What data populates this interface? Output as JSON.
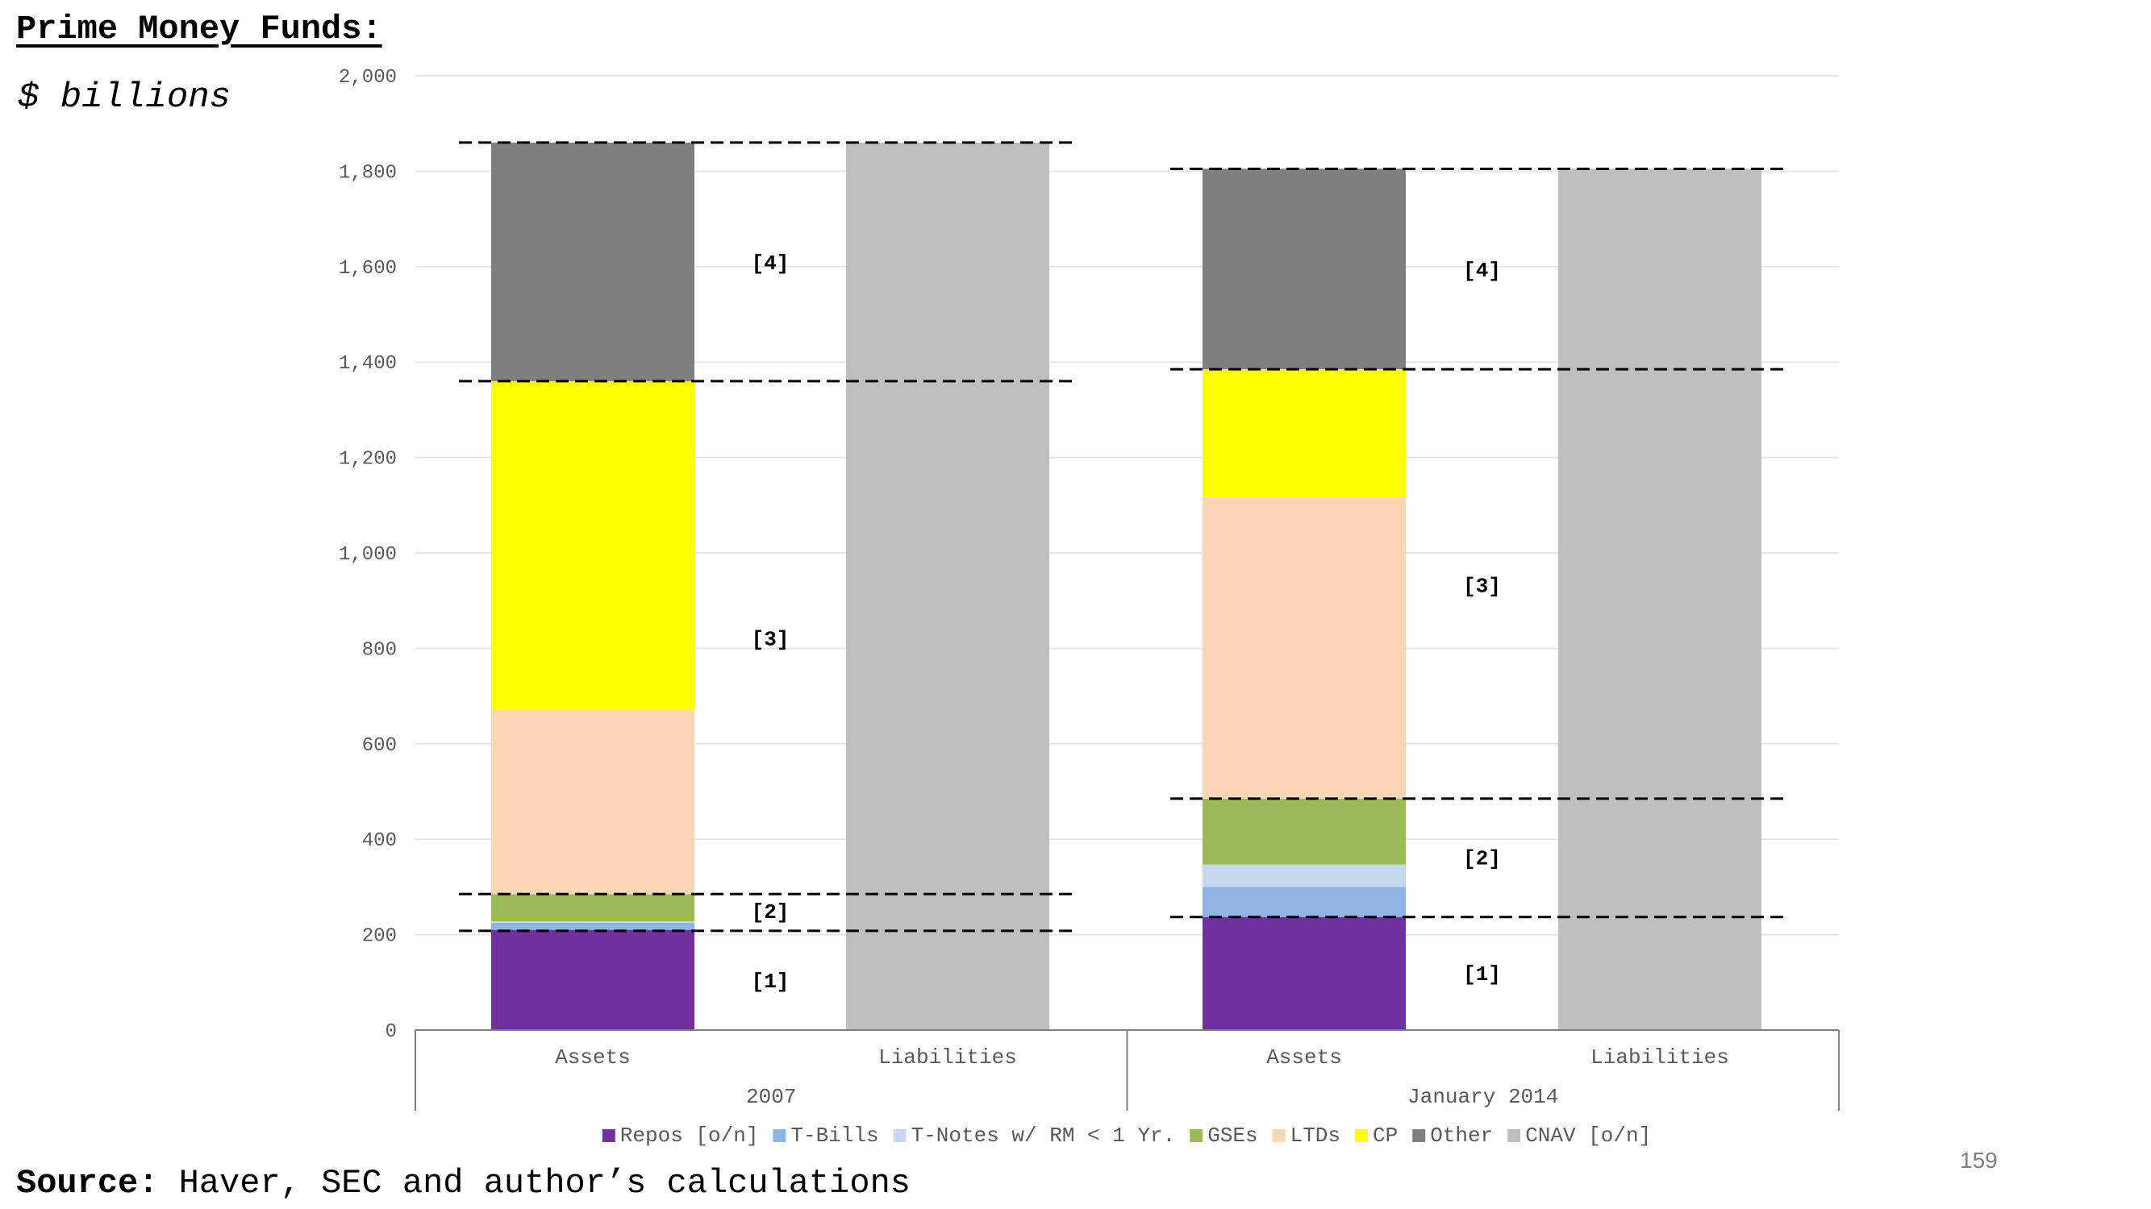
{
  "header": {
    "title": "Prime Money Funds:",
    "unit": "$ billions"
  },
  "footer": {
    "source_label": "Source:",
    "source_text": " Haver, SEC and author’s calculations",
    "page_number": "159"
  },
  "chart_data": {
    "type": "bar",
    "stacked": true,
    "ylim": [
      0,
      2000
    ],
    "yticks": [
      "0",
      "200",
      "400",
      "600",
      "800",
      "1,000",
      "1,200",
      "1,400",
      "1,600",
      "1,800",
      "2,000"
    ],
    "ytick_values": [
      0,
      200,
      400,
      600,
      800,
      1000,
      1200,
      1400,
      1600,
      1800,
      2000
    ],
    "grid": true,
    "legend_position": "bottom",
    "groups": [
      {
        "label": "2007",
        "bars": [
          {
            "label": "Assets",
            "segments": [
              {
                "series": "Repos [o/n]",
                "value": 210
              },
              {
                "series": "T-Bills",
                "value": 15
              },
              {
                "series": "T-Notes w/ RM < 1 Yr.",
                "value": 3
              },
              {
                "series": "GSEs",
                "value": 57
              },
              {
                "series": "LTDs",
                "value": 385
              },
              {
                "series": "CP",
                "value": 690
              },
              {
                "series": "Other",
                "value": 500
              }
            ]
          },
          {
            "label": "Liabilities",
            "segments": [
              {
                "series": "CNAV [o/n]",
                "value": 1860
              }
            ]
          }
        ],
        "brackets": [
          {
            "label": "[1]",
            "y": 105
          },
          {
            "label": "[2]",
            "y": 250
          },
          {
            "label": "[3]",
            "y": 822
          },
          {
            "label": "[4]",
            "y": 1610
          }
        ],
        "dashed_lines": [
          208,
          285,
          1360,
          1860
        ]
      },
      {
        "label": "January 2014",
        "bars": [
          {
            "label": "Assets",
            "segments": [
              {
                "series": "Repos [o/n]",
                "value": 237
              },
              {
                "series": "T-Bills",
                "value": 63
              },
              {
                "series": "T-Notes w/ RM < 1 Yr.",
                "value": 47
              },
              {
                "series": "GSEs",
                "value": 138
              },
              {
                "series": "LTDs",
                "value": 630
              },
              {
                "series": "CP",
                "value": 270
              },
              {
                "series": "Other",
                "value": 420
              }
            ]
          },
          {
            "label": "Liabilities",
            "segments": [
              {
                "series": "CNAV [o/n]",
                "value": 1805
              }
            ]
          }
        ],
        "brackets": [
          {
            "label": "[1]",
            "y": 120
          },
          {
            "label": "[2]",
            "y": 362
          },
          {
            "label": "[3]",
            "y": 933
          },
          {
            "label": "[4]",
            "y": 1595
          }
        ],
        "dashed_lines": [
          237,
          485,
          1385,
          1805
        ]
      }
    ],
    "series": [
      {
        "name": "Repos [o/n]",
        "color": "#7030a0"
      },
      {
        "name": "T-Bills",
        "color": "#8eb4e3"
      },
      {
        "name": "T-Notes w/ RM < 1 Yr.",
        "color": "#c6d9f1"
      },
      {
        "name": "GSEs",
        "color": "#9bbb59"
      },
      {
        "name": "LTDs",
        "color": "#fcd5b5"
      },
      {
        "name": "CP",
        "color": "#ffff00"
      },
      {
        "name": "Other",
        "color": "#7f7f7f"
      },
      {
        "name": "CNAV [o/n]",
        "color": "#bfbfbf"
      }
    ]
  }
}
